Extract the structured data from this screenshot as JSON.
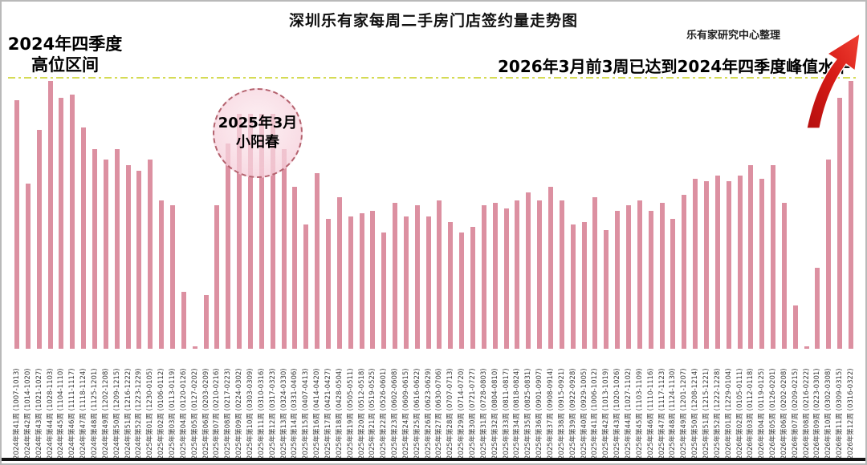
{
  "meta": {
    "credit": "乐有家研究中心整理"
  },
  "annotations": {
    "left_line1": "2024年四季度",
    "left_line2": "高位区间",
    "circle_line1": "2025年3月",
    "circle_line2": "小阳春",
    "right": "2026年3月前3周已达到2024年四季度峰值水平"
  },
  "colors": {
    "bar": "#dc90a1",
    "peak_line": "#d5db55",
    "arrow_dark": "#b50e0e",
    "arrow_light": "#ef4033",
    "circle_border": "#b4626e"
  },
  "chart_data": {
    "type": "bar",
    "title": "深圳乐有家每周二手房门店签约量走势图",
    "xlabel": "",
    "ylabel": "",
    "ylim": [
      0,
      100
    ],
    "grid": false,
    "legend": false,
    "reference_line": {
      "value": 100,
      "style": "dash-dot",
      "meaning": "2024年四季度高位区间"
    },
    "value_scale": "relative, 100 = 2024年四季度峰值",
    "weeks": [
      {
        "label": "2024年第41周",
        "range": "(1007-1013)",
        "value": 92
      },
      {
        "label": "2024年第42周",
        "range": "(1014-1020)",
        "value": 61
      },
      {
        "label": "2024年第43周",
        "range": "(1021-1027)",
        "value": 81
      },
      {
        "label": "2024年第44周",
        "range": "(1028-1103)",
        "value": 99
      },
      {
        "label": "2024年第45周",
        "range": "(1104-1110)",
        "value": 93
      },
      {
        "label": "2024年第46周",
        "range": "(1111-1117)",
        "value": 94
      },
      {
        "label": "2024年第47周",
        "range": "(1118-1124)",
        "value": 82
      },
      {
        "label": "2024年第48周",
        "range": "(1125-1201)",
        "value": 74
      },
      {
        "label": "2024年第49周",
        "range": "(1202-1208)",
        "value": 70
      },
      {
        "label": "2024年第50周",
        "range": "(1209-1215)",
        "value": 74
      },
      {
        "label": "2024年第51周",
        "range": "(1216-1222)",
        "value": 68
      },
      {
        "label": "2024年第52周",
        "range": "(1223-1229)",
        "value": 66
      },
      {
        "label": "2025年第01周",
        "range": "(1230-0105)",
        "value": 70
      },
      {
        "label": "2025年第02周",
        "range": "(0106-0112)",
        "value": 55
      },
      {
        "label": "2025年第03周",
        "range": "(0113-0119)",
        "value": 53
      },
      {
        "label": "2025年第04周",
        "range": "(0120-0126)",
        "value": 21
      },
      {
        "label": "2025年第05周",
        "range": "(0127-0202)",
        "value": 1
      },
      {
        "label": "2025年第06周",
        "range": "(0203-0209)",
        "value": 20
      },
      {
        "label": "2025年第07周",
        "range": "(0210-0216)",
        "value": 53
      },
      {
        "label": "2025年第08周",
        "range": "(0217-0223)",
        "value": 76
      },
      {
        "label": "2025年第09周",
        "range": "(0224-0302)",
        "value": 87
      },
      {
        "label": "2025年第10周",
        "range": "(0303-0309)",
        "value": 87
      },
      {
        "label": "2025年第11周",
        "range": "(0310-0316)",
        "value": 87
      },
      {
        "label": "2025年第12周",
        "range": "(0317-0323)",
        "value": 87
      },
      {
        "label": "2025年第13周",
        "range": "(0324-0330)",
        "value": 74
      },
      {
        "label": "2025年第14周",
        "range": "(0331-0406)",
        "value": 60
      },
      {
        "label": "2025年第15周",
        "range": "(0407-0413)",
        "value": 46
      },
      {
        "label": "2025年第16周",
        "range": "(0414-0420)",
        "value": 65
      },
      {
        "label": "2025年第17周",
        "range": "(0421-0427)",
        "value": 48
      },
      {
        "label": "2025年第18周",
        "range": "(0428-0504)",
        "value": 56
      },
      {
        "label": "2025年第19周",
        "range": "(0505-0511)",
        "value": 49
      },
      {
        "label": "2025年第20周",
        "range": "(0512-0518)",
        "value": 50
      },
      {
        "label": "2025年第21周",
        "range": "(0519-0525)",
        "value": 51
      },
      {
        "label": "2025年第22周",
        "range": "(0526-0601)",
        "value": 43
      },
      {
        "label": "2025年第23周",
        "range": "(0602-0608)",
        "value": 54
      },
      {
        "label": "2025年第24周",
        "range": "(0609-0615)",
        "value": 49
      },
      {
        "label": "2025年第25周",
        "range": "(0616-0622)",
        "value": 53
      },
      {
        "label": "2025年第26周",
        "range": "(0623-0629)",
        "value": 49
      },
      {
        "label": "2025年第27周",
        "range": "(0630-0706)",
        "value": 55
      },
      {
        "label": "2025年第28周",
        "range": "(0707-0713)",
        "value": 47
      },
      {
        "label": "2025年第29周",
        "range": "(0714-0720)",
        "value": 43
      },
      {
        "label": "2025年第30周",
        "range": "(0721-0727)",
        "value": 45
      },
      {
        "label": "2025年第31周",
        "range": "(0728-0803)",
        "value": 53
      },
      {
        "label": "2025年第32周",
        "range": "(0804-0810)",
        "value": 54
      },
      {
        "label": "2025年第33周",
        "range": "(0811-0817)",
        "value": 52
      },
      {
        "label": "2025年第34周",
        "range": "(0818-0824)",
        "value": 55
      },
      {
        "label": "2025年第35周",
        "range": "(0825-0831)",
        "value": 58
      },
      {
        "label": "2025年第36周",
        "range": "(0901-0907)",
        "value": 55
      },
      {
        "label": "2025年第37周",
        "range": "(0908-0914)",
        "value": 60
      },
      {
        "label": "2025年第38周",
        "range": "(0915-0921)",
        "value": 55
      },
      {
        "label": "2025年第39周",
        "range": "(0922-0928)",
        "value": 46
      },
      {
        "label": "2025年第40周",
        "range": "(0929-1005)",
        "value": 47
      },
      {
        "label": "2025年第41周",
        "range": "(1006-1012)",
        "value": 56
      },
      {
        "label": "2025年第42周",
        "range": "(1013-1019)",
        "value": 44
      },
      {
        "label": "2025年第43周",
        "range": "(1020-1026)",
        "value": 51
      },
      {
        "label": "2025年第44周",
        "range": "(1027-1102)",
        "value": 53
      },
      {
        "label": "2025年第45周",
        "range": "(1103-1109)",
        "value": 55
      },
      {
        "label": "2025年第46周",
        "range": "(1110-1116)",
        "value": 51
      },
      {
        "label": "2025年第47周",
        "range": "(1117-1123)",
        "value": 54
      },
      {
        "label": "2025年第48周",
        "range": "(1124-1130)",
        "value": 48
      },
      {
        "label": "2025年第49周",
        "range": "(1201-1207)",
        "value": 57
      },
      {
        "label": "2025年第50周",
        "range": "(1208-1214)",
        "value": 63
      },
      {
        "label": "2025年第51周",
        "range": "(1215-1221)",
        "value": 62
      },
      {
        "label": "2025年第52周",
        "range": "(1222-1228)",
        "value": 64
      },
      {
        "label": "2026年第01周",
        "range": "(1229-0104)",
        "value": 62
      },
      {
        "label": "2026年第02周",
        "range": "(0105-0111)",
        "value": 64
      },
      {
        "label": "2026年第03周",
        "range": "(0112-0118)",
        "value": 68
      },
      {
        "label": "2026年第04周",
        "range": "(0119-0125)",
        "value": 63
      },
      {
        "label": "2026年第05周",
        "range": "(0126-0201)",
        "value": 68
      },
      {
        "label": "2026年第06周",
        "range": "(0202-0208)",
        "value": 54
      },
      {
        "label": "2026年第07周",
        "range": "(0209-0215)",
        "value": 16
      },
      {
        "label": "2026年第08周",
        "range": "(0216-0222)",
        "value": 1
      },
      {
        "label": "2026年第09周",
        "range": "(0223-0301)",
        "value": 30
      },
      {
        "label": "2026年第10周",
        "range": "(0302-0308)",
        "value": 70
      },
      {
        "label": "2026年第11周",
        "range": "(0309-0315)",
        "value": 93
      },
      {
        "label": "2026年第12周",
        "range": "(0316-0322)",
        "value": 99
      }
    ]
  }
}
